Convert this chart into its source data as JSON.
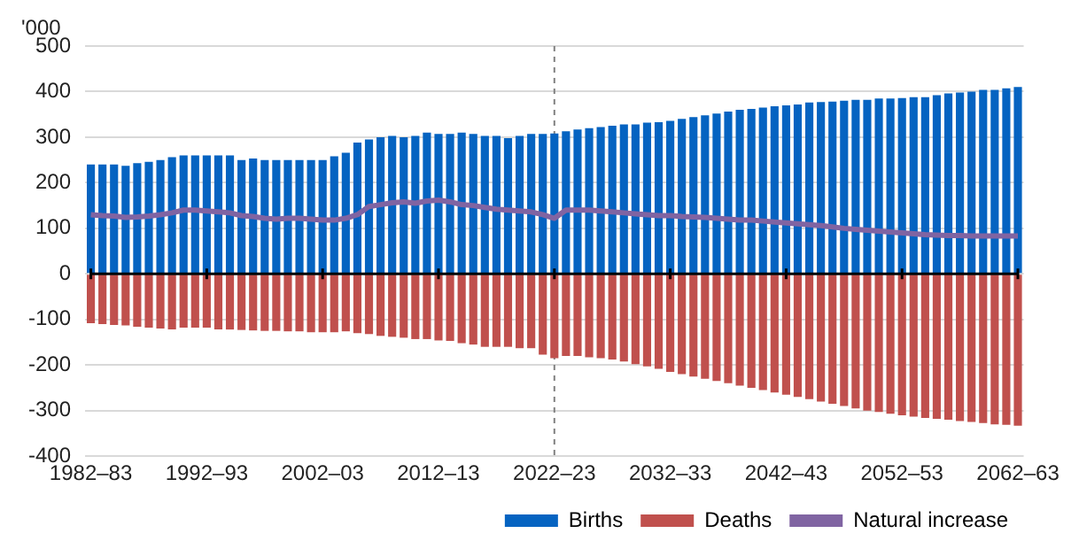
{
  "chart_data": {
    "type": "bar",
    "ylabel": "'000",
    "stacked": true,
    "grid": "y",
    "legend": "bottom",
    "categories": [
      "1982–83",
      null,
      null,
      null,
      null,
      null,
      null,
      null,
      null,
      null,
      "1992–93",
      null,
      null,
      null,
      null,
      null,
      null,
      null,
      null,
      null,
      "2002–03",
      null,
      null,
      null,
      null,
      null,
      null,
      null,
      null,
      null,
      "2012–13",
      null,
      null,
      null,
      null,
      null,
      null,
      null,
      null,
      null,
      "2022–23",
      null,
      null,
      null,
      null,
      null,
      null,
      null,
      null,
      null,
      "2032–33",
      null,
      null,
      null,
      null,
      null,
      null,
      null,
      null,
      null,
      "2042–43",
      null,
      null,
      null,
      null,
      null,
      null,
      null,
      null,
      null,
      "2052–53",
      null,
      null,
      null,
      null,
      null,
      null,
      null,
      null,
      null,
      "2062–63"
    ],
    "ylim": [
      -400,
      500
    ],
    "yticks": [
      -400,
      -300,
      -200,
      -100,
      0,
      100,
      200,
      300,
      400,
      500
    ],
    "series": [
      {
        "name": "Births",
        "color": "#0563c1",
        "values": [
          240,
          240,
          240,
          237,
          243,
          246,
          250,
          256,
          260,
          260,
          260,
          260,
          260,
          250,
          253,
          250,
          250,
          250,
          250,
          250,
          250,
          258,
          266,
          288,
          295,
          300,
          303,
          300,
          303,
          310,
          307,
          307,
          310,
          307,
          303,
          303,
          298,
          303,
          307,
          307,
          308,
          313,
          317,
          320,
          322,
          325,
          328,
          328,
          332,
          333,
          336,
          340,
          344,
          348,
          352,
          356,
          360,
          362,
          365,
          368,
          370,
          372,
          376,
          377,
          378,
          380,
          382,
          382,
          385,
          385,
          386,
          388,
          388,
          392,
          396,
          398,
          400,
          404,
          404,
          407,
          410
        ]
      },
      {
        "name": "Deaths",
        "color": "#c0504d",
        "values": [
          -108,
          -110,
          -112,
          -113,
          -116,
          -118,
          -120,
          -122,
          -118,
          -118,
          -118,
          -122,
          -122,
          -123,
          -124,
          -125,
          -125,
          -126,
          -126,
          -128,
          -128,
          -128,
          -126,
          -130,
          -132,
          -136,
          -138,
          -140,
          -143,
          -143,
          -146,
          -147,
          -152,
          -155,
          -160,
          -160,
          -160,
          -163,
          -163,
          -177,
          -185,
          -180,
          -180,
          -183,
          -185,
          -188,
          -192,
          -198,
          -203,
          -208,
          -215,
          -220,
          -225,
          -230,
          -235,
          -240,
          -245,
          -250,
          -255,
          -260,
          -265,
          -270,
          -275,
          -280,
          -285,
          -290,
          -295,
          -300,
          -303,
          -307,
          -310,
          -313,
          -316,
          -318,
          -320,
          -323,
          -325,
          -327,
          -330,
          -331,
          -333
        ]
      },
      {
        "name": "Natural increase",
        "type": "line",
        "color": "#8064a2",
        "values": [
          130,
          128,
          127,
          124,
          125,
          127,
          130,
          134,
          140,
          140,
          138,
          136,
          134,
          128,
          126,
          122,
          120,
          122,
          122,
          120,
          118,
          118,
          122,
          130,
          148,
          152,
          156,
          158,
          155,
          160,
          162,
          158,
          152,
          150,
          146,
          142,
          140,
          138,
          136,
          130,
          122,
          140,
          140,
          140,
          138,
          136,
          134,
          132,
          130,
          128,
          128,
          126,
          125,
          124,
          122,
          120,
          118,
          118,
          116,
          114,
          112,
          110,
          108,
          106,
          103,
          100,
          98,
          96,
          94,
          92,
          90,
          88,
          86,
          85,
          84,
          84,
          83,
          83,
          83,
          83,
          83
        ]
      }
    ],
    "ref_lines": [
      {
        "axis": "x",
        "value": "2022–23",
        "color": "#808080",
        "line_style": "dashed"
      }
    ]
  }
}
